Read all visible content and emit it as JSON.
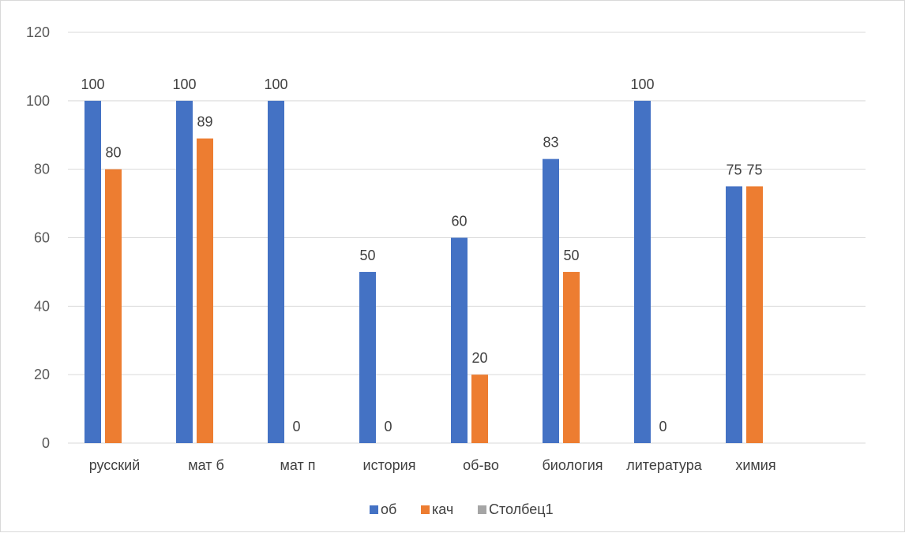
{
  "chart_data": {
    "type": "bar",
    "categories": [
      "русский",
      "мат б",
      "мат п",
      "история",
      "об-во",
      "биология",
      "литература",
      "химия"
    ],
    "series": [
      {
        "name": "об",
        "values": [
          100,
          100,
          100,
          50,
          60,
          83,
          100,
          75
        ],
        "color": "#4472C4"
      },
      {
        "name": "кач",
        "values": [
          80,
          89,
          0,
          0,
          20,
          50,
          0,
          75
        ],
        "color": "#ED7D31"
      },
      {
        "name": "Столбец1",
        "values": [
          null,
          null,
          null,
          null,
          null,
          null,
          null,
          null
        ],
        "color": "#A5A5A5"
      }
    ],
    "data_label_text": {
      "об": [
        "100",
        "100",
        "100",
        "50",
        "60",
        "83",
        "100",
        "75"
      ],
      "кач": [
        "80",
        "89",
        "0",
        "0",
        "20",
        "50",
        "0",
        "75"
      ]
    },
    "y_ticks": [
      0,
      20,
      40,
      60,
      80,
      100,
      120
    ],
    "ylim": [
      0,
      120
    ],
    "grid": true,
    "gridline_color": "#d9d9d9",
    "legend_position": "bottom",
    "title": "",
    "xlabel": "",
    "ylabel": ""
  }
}
